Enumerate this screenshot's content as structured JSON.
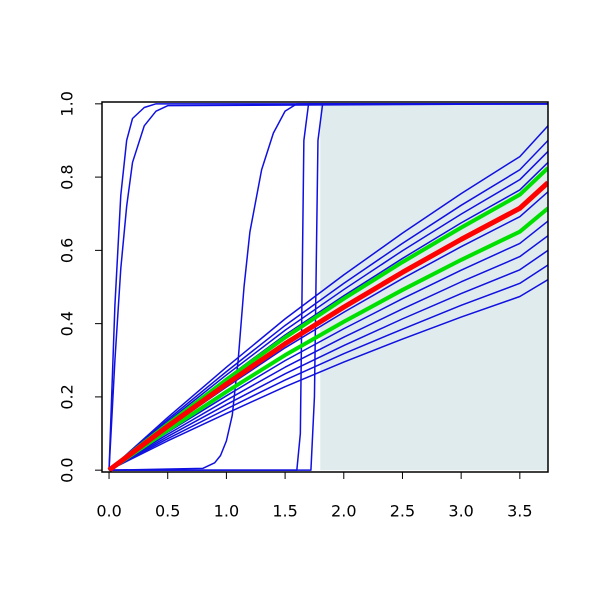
{
  "chart_data": {
    "type": "line",
    "xlim": [
      -0.06,
      3.74
    ],
    "ylim": [
      -0.005,
      1.005
    ],
    "xticks": [
      {
        "value": 0,
        "label": "0.0"
      },
      {
        "value": 0.5,
        "label": "0.5"
      },
      {
        "value": 1,
        "label": "1.0"
      },
      {
        "value": 1.5,
        "label": "1.5"
      },
      {
        "value": 2,
        "label": "2.0"
      },
      {
        "value": 2.5,
        "label": "2.5"
      },
      {
        "value": 3,
        "label": "3.0"
      },
      {
        "value": 3.5,
        "label": "3.5"
      }
    ],
    "yticks": [
      {
        "value": 0,
        "label": "0.0"
      },
      0.2,
      0.4,
      0.6,
      0.8,
      {
        "value": 1,
        "label": "1.0"
      }
    ],
    "shade": {
      "x": [
        1.8,
        3.74
      ],
      "y": [
        0,
        1
      ],
      "color": "#dfebed"
    },
    "x": [
      0,
      0.5,
      1,
      1.5,
      2,
      2.5,
      3,
      3.5,
      3.74
    ],
    "series": [
      {
        "color": "#1010e0",
        "values": [
          0,
          0.144,
          0.281,
          0.413,
          0.533,
          0.647,
          0.755,
          0.856,
          0.94
        ]
      },
      {
        "color": "#1010e0",
        "values": [
          0,
          0.138,
          0.269,
          0.395,
          0.51,
          0.619,
          0.723,
          0.82,
          0.9
        ]
      },
      {
        "color": "#1010e0",
        "values": [
          0,
          0.133,
          0.26,
          0.382,
          0.493,
          0.599,
          0.699,
          0.793,
          0.87
        ]
      },
      {
        "color": "#1010e0",
        "values": [
          0,
          0.129,
          0.251,
          0.369,
          0.476,
          0.578,
          0.675,
          0.765,
          0.84
        ]
      },
      {
        "color": "#1010e0",
        "values": [
          0,
          0.116,
          0.227,
          0.334,
          0.431,
          0.523,
          0.61,
          0.692,
          0.76
        ]
      },
      {
        "color": "#1010e0",
        "values": [
          0,
          0.104,
          0.203,
          0.299,
          0.386,
          0.468,
          0.546,
          0.619,
          0.68
        ]
      },
      {
        "color": "#1010e0",
        "values": [
          0,
          0.098,
          0.191,
          0.281,
          0.363,
          0.44,
          0.514,
          0.583,
          0.64
        ]
      },
      {
        "color": "#1010e0",
        "values": [
          0,
          0.092,
          0.179,
          0.263,
          0.34,
          0.413,
          0.482,
          0.547,
          0.6
        ]
      },
      {
        "color": "#1010e0",
        "values": [
          0,
          0.086,
          0.167,
          0.246,
          0.318,
          0.385,
          0.45,
          0.51,
          0.56
        ]
      },
      {
        "color": "#1010e0",
        "values": [
          0,
          0.08,
          0.155,
          0.228,
          0.295,
          0.358,
          0.418,
          0.474,
          0.52
        ]
      },
      {
        "color": "#1010e0",
        "x": [
          0,
          0.05,
          0.1,
          0.15,
          0.2,
          0.3,
          0.4,
          0.5,
          3.74
        ],
        "values": [
          0,
          0.45,
          0.75,
          0.9,
          0.96,
          0.99,
          1,
          1,
          1
        ]
      },
      {
        "color": "#1010e0",
        "x": [
          0,
          0.05,
          0.1,
          0.15,
          0.2,
          0.3,
          0.4,
          0.5,
          3.74
        ],
        "values": [
          0,
          0.3,
          0.55,
          0.72,
          0.84,
          0.94,
          0.98,
          0.995,
          1
        ]
      },
      {
        "color": "#1010e0",
        "x": [
          0,
          0.8,
          0.9,
          0.95,
          1,
          1.05,
          1.1,
          1.15,
          1.2,
          1.3,
          1.4,
          1.5,
          1.6,
          3.74
        ],
        "values": [
          0,
          0.005,
          0.02,
          0.04,
          0.08,
          0.15,
          0.3,
          0.5,
          0.65,
          0.82,
          0.92,
          0.98,
          1,
          1
        ]
      },
      {
        "color": "#1010e0",
        "x": [
          0,
          1.6,
          1.63,
          1.66,
          1.7,
          3.74
        ],
        "values": [
          0,
          0,
          0.1,
          0.9,
          1,
          1
        ]
      },
      {
        "color": "#1010e0",
        "x": [
          0,
          1.72,
          1.75,
          1.78,
          1.82,
          3.74
        ],
        "values": [
          0,
          0,
          0.2,
          0.9,
          1,
          1
        ]
      },
      {
        "color": "#00e000",
        "width": 4,
        "values": [
          0,
          0.126,
          0.247,
          0.362,
          0.468,
          0.568,
          0.662,
          0.752,
          0.825
        ]
      },
      {
        "color": "#00e000",
        "width": 4,
        "values": [
          0,
          0.109,
          0.214,
          0.314,
          0.405,
          0.492,
          0.574,
          0.651,
          0.715
        ]
      },
      {
        "color": "#ff0000",
        "width": 5,
        "values": [
          0,
          0.12,
          0.235,
          0.345,
          0.445,
          0.54,
          0.63,
          0.715,
          0.785
        ]
      }
    ]
  }
}
